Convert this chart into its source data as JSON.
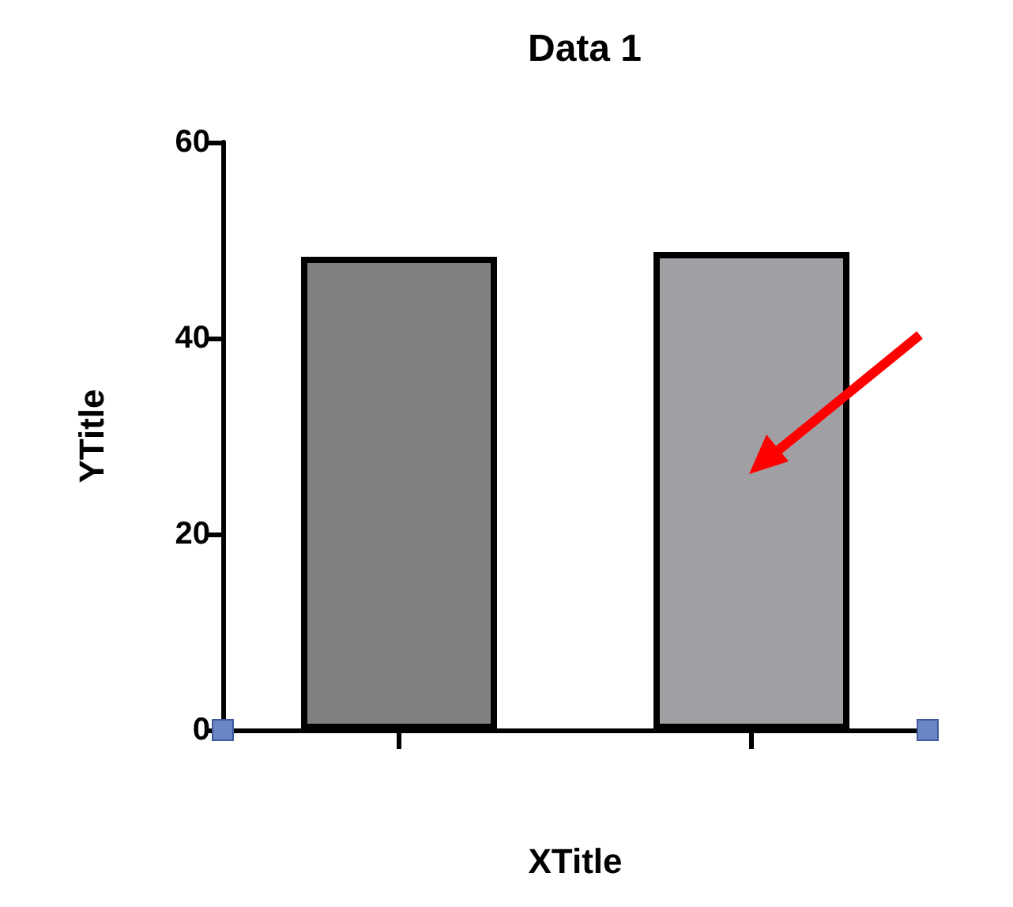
{
  "chart_data": {
    "type": "bar",
    "title": "Data 1",
    "xlabel": "XTitle",
    "ylabel": "YTitle",
    "categories": [
      null,
      null
    ],
    "values": [
      48.3,
      48.8
    ],
    "colors": [
      "#808080",
      "#a0a0a4"
    ],
    "ylim": [
      0,
      60
    ],
    "yticks": [
      0,
      20,
      40,
      60
    ],
    "grid": false
  }
}
